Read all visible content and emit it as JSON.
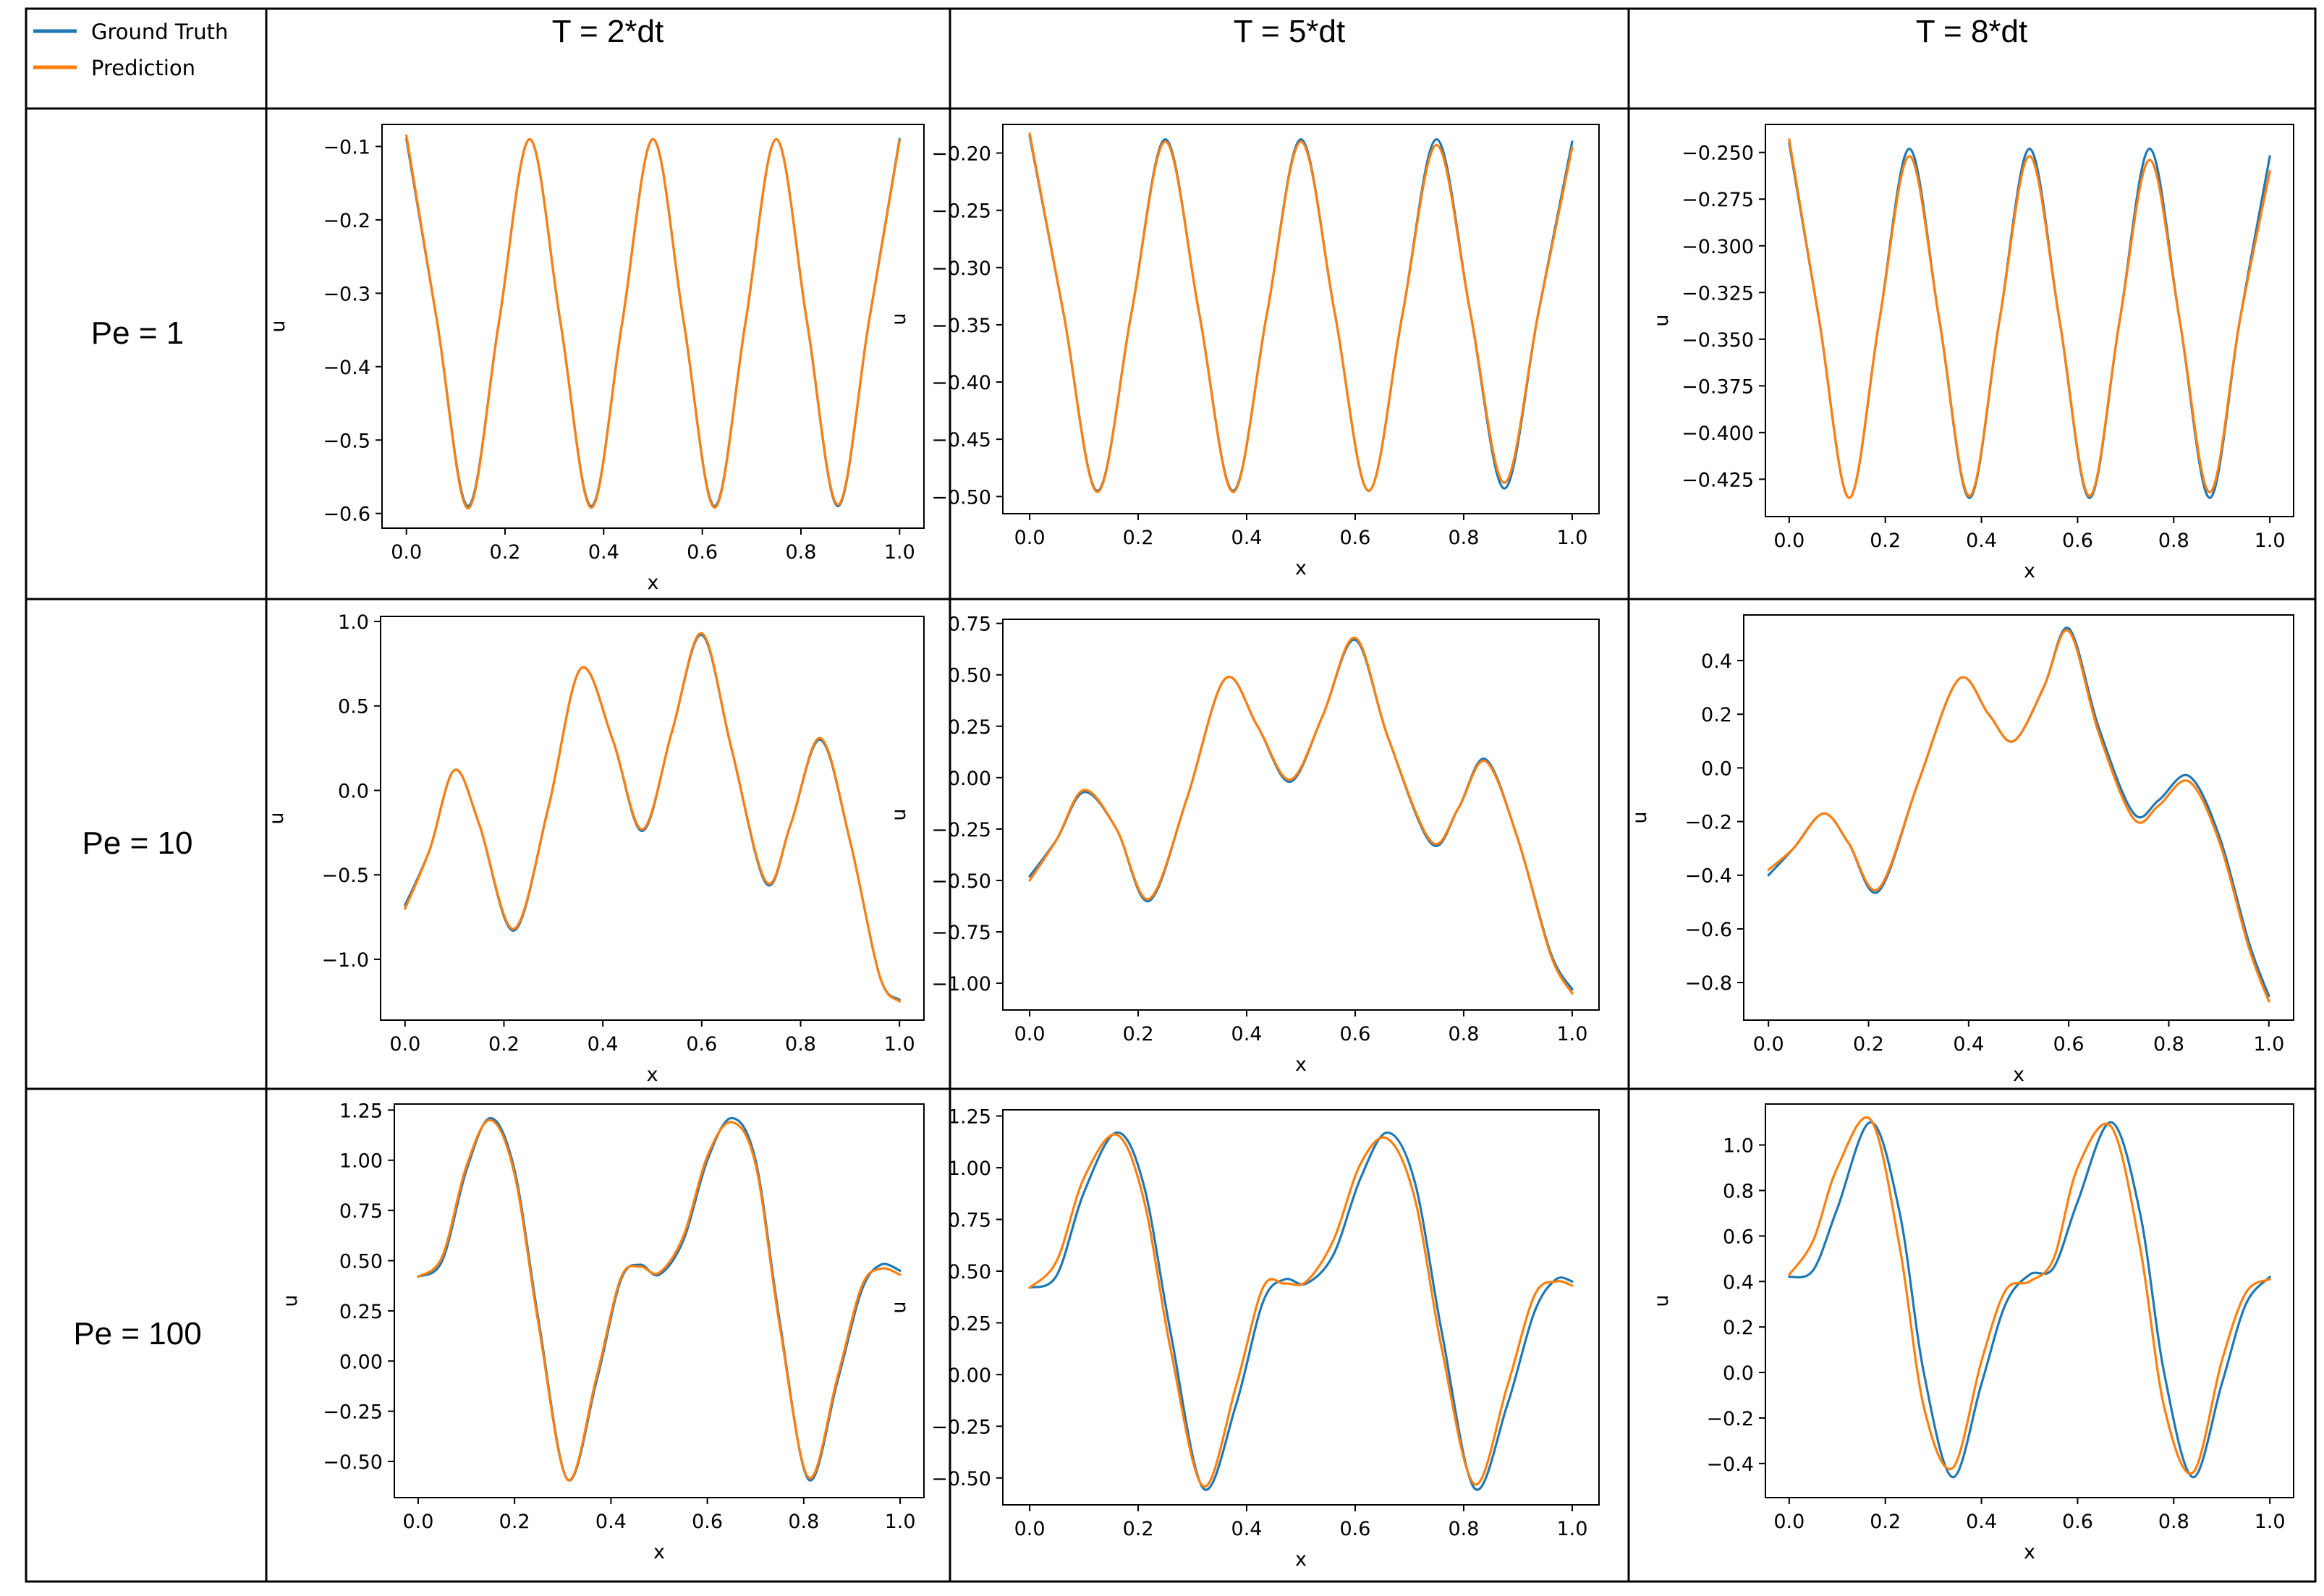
{
  "legend": [
    {
      "label": "Ground Truth",
      "color": "#1f77b4"
    },
    {
      "label": "Prediction",
      "color": "#ff7f0e"
    }
  ],
  "col_headers": [
    "T = 2*dt",
    "T = 5*dt",
    "T = 8*dt"
  ],
  "row_headers": [
    "Pe = 1",
    "Pe = 10",
    "Pe = 100"
  ],
  "chart_data": [
    {
      "type": "line",
      "row": 0,
      "col": 0,
      "xlabel": "x",
      "ylabel": "u",
      "xlim": [
        0,
        1
      ],
      "ylim": [
        -0.62,
        -0.07
      ],
      "xticks": [
        0,
        0.2,
        0.4,
        0.6,
        0.8,
        1.0
      ],
      "xtick_labels": [
        "0.0",
        "0.2",
        "0.4",
        "0.6",
        "0.8",
        "1.0"
      ],
      "yticks": [
        -0.1,
        -0.2,
        -0.3,
        -0.4,
        -0.5,
        -0.6
      ],
      "ytick_labels": [
        "−0.1",
        "−0.2",
        "−0.3",
        "−0.4",
        "−0.5",
        "−0.6"
      ],
      "x": [
        0,
        0.0625,
        0.125,
        0.1875,
        0.25,
        0.3125,
        0.375,
        0.4375,
        0.5,
        0.5625,
        0.625,
        0.6875,
        0.75,
        0.8125,
        0.875,
        0.9375,
        1.0
      ],
      "series": [
        {
          "name": "Ground Truth",
          "values": [
            -0.09,
            -0.34,
            -0.59,
            -0.34,
            -0.09,
            -0.34,
            -0.59,
            -0.34,
            -0.09,
            -0.34,
            -0.59,
            -0.34,
            -0.09,
            -0.34,
            -0.59,
            -0.34,
            -0.09
          ]
        },
        {
          "name": "Prediction",
          "values": [
            -0.085,
            -0.34,
            -0.593,
            -0.34,
            -0.09,
            -0.34,
            -0.592,
            -0.34,
            -0.09,
            -0.34,
            -0.592,
            -0.34,
            -0.09,
            -0.34,
            -0.588,
            -0.34,
            -0.092
          ]
        }
      ]
    },
    {
      "type": "line",
      "row": 0,
      "col": 1,
      "xlabel": "x",
      "ylabel": "u",
      "xlim": [
        0,
        1
      ],
      "ylim": [
        -0.515,
        -0.175
      ],
      "xticks": [
        0,
        0.2,
        0.4,
        0.6,
        0.8,
        1.0
      ],
      "xtick_labels": [
        "0.0",
        "0.2",
        "0.4",
        "0.6",
        "0.8",
        "1.0"
      ],
      "yticks": [
        -0.2,
        -0.25,
        -0.3,
        -0.35,
        -0.4,
        -0.45,
        -0.5
      ],
      "ytick_labels": [
        "−0.20",
        "−0.25",
        "−0.30",
        "−0.35",
        "−0.40",
        "−0.45",
        "−0.50"
      ],
      "x": [
        0,
        0.0625,
        0.125,
        0.1875,
        0.25,
        0.3125,
        0.375,
        0.4375,
        0.5,
        0.5625,
        0.625,
        0.6875,
        0.75,
        0.8125,
        0.875,
        0.9375,
        1.0
      ],
      "series": [
        {
          "name": "Ground Truth",
          "values": [
            -0.185,
            -0.34,
            -0.495,
            -0.34,
            -0.188,
            -0.34,
            -0.495,
            -0.34,
            -0.188,
            -0.34,
            -0.495,
            -0.34,
            -0.188,
            -0.34,
            -0.493,
            -0.34,
            -0.19
          ]
        },
        {
          "name": "Prediction",
          "values": [
            -0.183,
            -0.34,
            -0.496,
            -0.34,
            -0.19,
            -0.34,
            -0.496,
            -0.34,
            -0.19,
            -0.34,
            -0.495,
            -0.34,
            -0.193,
            -0.34,
            -0.488,
            -0.34,
            -0.195
          ]
        }
      ]
    },
    {
      "type": "line",
      "row": 0,
      "col": 2,
      "xlabel": "x",
      "ylabel": "u",
      "xlim": [
        0,
        1
      ],
      "ylim": [
        -0.445,
        -0.235
      ],
      "xticks": [
        0,
        0.2,
        0.4,
        0.6,
        0.8,
        1.0
      ],
      "xtick_labels": [
        "0.0",
        "0.2",
        "0.4",
        "0.6",
        "0.8",
        "1.0"
      ],
      "yticks": [
        -0.25,
        -0.275,
        -0.3,
        -0.325,
        -0.35,
        -0.375,
        -0.4,
        -0.425
      ],
      "ytick_labels": [
        "−0.250",
        "−0.275",
        "−0.300",
        "−0.325",
        "−0.350",
        "−0.375",
        "−0.400",
        "−0.425"
      ],
      "x": [
        0,
        0.0625,
        0.125,
        0.1875,
        0.25,
        0.3125,
        0.375,
        0.4375,
        0.5,
        0.5625,
        0.625,
        0.6875,
        0.75,
        0.8125,
        0.875,
        0.9375,
        1.0
      ],
      "series": [
        {
          "name": "Ground Truth",
          "values": [
            -0.245,
            -0.34,
            -0.435,
            -0.34,
            -0.248,
            -0.34,
            -0.435,
            -0.34,
            -0.248,
            -0.34,
            -0.435,
            -0.34,
            -0.248,
            -0.34,
            -0.435,
            -0.34,
            -0.252
          ]
        },
        {
          "name": "Prediction",
          "values": [
            -0.243,
            -0.34,
            -0.435,
            -0.34,
            -0.252,
            -0.34,
            -0.434,
            -0.34,
            -0.252,
            -0.34,
            -0.434,
            -0.34,
            -0.254,
            -0.34,
            -0.432,
            -0.34,
            -0.26
          ]
        }
      ]
    },
    {
      "type": "line",
      "row": 1,
      "col": 0,
      "xlabel": "x",
      "ylabel": "u",
      "xlim": [
        0,
        1
      ],
      "ylim": [
        -1.36,
        1.03
      ],
      "xticks": [
        0,
        0.2,
        0.4,
        0.6,
        0.8,
        1.0
      ],
      "xtick_labels": [
        "0.0",
        "0.2",
        "0.4",
        "0.6",
        "0.8",
        "1.0"
      ],
      "yticks": [
        1.0,
        0.5,
        0.0,
        -0.5,
        -1.0
      ],
      "ytick_labels": [
        "1.0",
        "0.5",
        "0.0",
        "−0.5",
        "−1.0"
      ],
      "x": [
        0,
        0.05,
        0.1,
        0.15,
        0.22,
        0.29,
        0.355,
        0.42,
        0.48,
        0.54,
        0.6,
        0.66,
        0.73,
        0.78,
        0.84,
        0.9,
        0.96,
        1.0
      ],
      "series": [
        {
          "name": "Ground Truth",
          "values": [
            -0.68,
            -0.35,
            0.12,
            -0.2,
            -0.83,
            -0.1,
            0.72,
            0.3,
            -0.24,
            0.35,
            0.92,
            0.25,
            -0.55,
            -0.2,
            0.3,
            -0.3,
            -1.1,
            -1.24
          ]
        },
        {
          "name": "Prediction",
          "values": [
            -0.7,
            -0.35,
            0.12,
            -0.2,
            -0.82,
            -0.1,
            0.72,
            0.3,
            -0.23,
            0.35,
            0.93,
            0.25,
            -0.54,
            -0.2,
            0.31,
            -0.3,
            -1.1,
            -1.25
          ]
        }
      ]
    },
    {
      "type": "line",
      "row": 1,
      "col": 1,
      "xlabel": "x",
      "ylabel": "u",
      "xlim": [
        0,
        1
      ],
      "ylim": [
        -1.13,
        0.77
      ],
      "xticks": [
        0,
        0.2,
        0.4,
        0.6,
        0.8,
        1.0
      ],
      "xtick_labels": [
        "0.0",
        "0.2",
        "0.4",
        "0.6",
        "0.8",
        "1.0"
      ],
      "yticks": [
        0.75,
        0.5,
        0.25,
        0.0,
        -0.25,
        -0.5,
        -0.75,
        -1.0
      ],
      "ytick_labels": [
        "0.75",
        "0.50",
        "0.25",
        "0.00",
        "−0.25",
        "−0.50",
        "−0.75",
        "−1.00"
      ],
      "x": [
        0,
        0.05,
        0.1,
        0.16,
        0.22,
        0.29,
        0.36,
        0.42,
        0.48,
        0.54,
        0.6,
        0.66,
        0.74,
        0.79,
        0.84,
        0.9,
        0.96,
        1.0
      ],
      "series": [
        {
          "name": "Ground Truth",
          "values": [
            -0.48,
            -0.3,
            -0.07,
            -0.25,
            -0.6,
            -0.1,
            0.48,
            0.25,
            -0.02,
            0.3,
            0.67,
            0.2,
            -0.32,
            -0.15,
            0.09,
            -0.3,
            -0.85,
            -1.03
          ]
        },
        {
          "name": "Prediction",
          "values": [
            -0.5,
            -0.3,
            -0.06,
            -0.25,
            -0.59,
            -0.1,
            0.48,
            0.25,
            -0.01,
            0.3,
            0.68,
            0.2,
            -0.31,
            -0.15,
            0.08,
            -0.3,
            -0.86,
            -1.05
          ]
        }
      ]
    },
    {
      "type": "line",
      "row": 1,
      "col": 2,
      "xlabel": "x",
      "ylabel": "u",
      "xlim": [
        0,
        1
      ],
      "ylim": [
        -0.94,
        0.57
      ],
      "xticks": [
        0,
        0.2,
        0.4,
        0.6,
        0.8,
        1.0
      ],
      "xtick_labels": [
        "0.0",
        "0.2",
        "0.4",
        "0.6",
        "0.8",
        "1.0"
      ],
      "yticks": [
        0.4,
        0.2,
        0.0,
        -0.2,
        -0.4,
        -0.6,
        -0.8
      ],
      "ytick_labels": [
        "0.4",
        "0.2",
        "0.0",
        "−0.2",
        "−0.4",
        "−0.6",
        "−0.8"
      ],
      "x": [
        0,
        0.05,
        0.11,
        0.16,
        0.22,
        0.3,
        0.38,
        0.44,
        0.49,
        0.55,
        0.6,
        0.66,
        0.73,
        0.78,
        0.84,
        0.9,
        0.96,
        1.0
      ],
      "series": [
        {
          "name": "Ground Truth",
          "values": [
            -0.4,
            -0.3,
            -0.17,
            -0.28,
            -0.46,
            -0.05,
            0.33,
            0.2,
            0.1,
            0.3,
            0.52,
            0.15,
            -0.17,
            -0.12,
            -0.03,
            -0.25,
            -0.65,
            -0.85
          ]
        },
        {
          "name": "Prediction",
          "values": [
            -0.38,
            -0.3,
            -0.17,
            -0.28,
            -0.45,
            -0.05,
            0.33,
            0.2,
            0.1,
            0.3,
            0.51,
            0.13,
            -0.19,
            -0.14,
            -0.05,
            -0.27,
            -0.67,
            -0.87
          ]
        }
      ]
    },
    {
      "type": "line",
      "row": 2,
      "col": 0,
      "xlabel": "x",
      "ylabel": "u",
      "xlim": [
        0,
        1
      ],
      "ylim": [
        -0.68,
        1.28
      ],
      "xticks": [
        0,
        0.2,
        0.4,
        0.6,
        0.8,
        1.0
      ],
      "xtick_labels": [
        "0.0",
        "0.2",
        "0.4",
        "0.6",
        "0.8",
        "1.0"
      ],
      "yticks": [
        1.25,
        1.0,
        0.75,
        0.5,
        0.25,
        0.0,
        -0.25,
        -0.5
      ],
      "ytick_labels": [
        "1.25",
        "1.00",
        "0.75",
        "0.50",
        "0.25",
        "0.00",
        "−0.25",
        "−0.50"
      ],
      "x": [
        0,
        0.05,
        0.1,
        0.15,
        0.2,
        0.25,
        0.31,
        0.37,
        0.42,
        0.46,
        0.5,
        0.55,
        0.6,
        0.65,
        0.7,
        0.75,
        0.81,
        0.87,
        0.92,
        0.96,
        1.0
      ],
      "series": [
        {
          "name": "Ground Truth",
          "values": [
            0.42,
            0.5,
            0.95,
            1.21,
            0.95,
            0.2,
            -0.59,
            -0.1,
            0.4,
            0.48,
            0.43,
            0.6,
            1.0,
            1.21,
            1.0,
            0.2,
            -0.59,
            -0.1,
            0.35,
            0.48,
            0.45
          ]
        },
        {
          "name": "Prediction",
          "values": [
            0.42,
            0.52,
            0.97,
            1.2,
            0.93,
            0.18,
            -0.59,
            -0.08,
            0.41,
            0.47,
            0.44,
            0.62,
            1.02,
            1.19,
            0.98,
            0.18,
            -0.58,
            -0.08,
            0.37,
            0.46,
            0.43
          ]
        }
      ]
    },
    {
      "type": "line",
      "row": 2,
      "col": 1,
      "xlabel": "x",
      "ylabel": "u",
      "xlim": [
        0,
        1
      ],
      "ylim": [
        -0.63,
        1.28
      ],
      "xticks": [
        0,
        0.2,
        0.4,
        0.6,
        0.8,
        1.0
      ],
      "xtick_labels": [
        "0.0",
        "0.2",
        "0.4",
        "0.6",
        "0.8",
        "1.0"
      ],
      "yticks": [
        1.25,
        1.0,
        0.75,
        0.5,
        0.25,
        0.0,
        -0.25,
        -0.5
      ],
      "ytick_labels": [
        "1.25",
        "1.00",
        "0.75",
        "0.50",
        "0.25",
        "0.00",
        "−0.25",
        "−0.50"
      ],
      "x": [
        0,
        0.05,
        0.1,
        0.16,
        0.21,
        0.26,
        0.32,
        0.38,
        0.43,
        0.47,
        0.51,
        0.56,
        0.61,
        0.66,
        0.71,
        0.76,
        0.82,
        0.88,
        0.93,
        0.97,
        1.0
      ],
      "series": [
        {
          "name": "Ground Truth",
          "values": [
            0.42,
            0.48,
            0.88,
            1.17,
            0.92,
            0.2,
            -0.55,
            -0.15,
            0.35,
            0.46,
            0.44,
            0.58,
            0.95,
            1.17,
            0.93,
            0.2,
            -0.55,
            -0.15,
            0.3,
            0.46,
            0.45
          ]
        },
        {
          "name": "Prediction",
          "values": [
            0.42,
            0.55,
            0.95,
            1.16,
            0.85,
            0.12,
            -0.54,
            -0.06,
            0.42,
            0.44,
            0.45,
            0.65,
            1.02,
            1.14,
            0.85,
            0.12,
            -0.53,
            -0.06,
            0.38,
            0.45,
            0.43
          ]
        }
      ]
    },
    {
      "type": "line",
      "row": 2,
      "col": 2,
      "xlabel": "x",
      "ylabel": "u",
      "xlim": [
        0,
        1
      ],
      "ylim": [
        -0.55,
        1.18
      ],
      "xticks": [
        0,
        0.2,
        0.4,
        0.6,
        0.8,
        1.0
      ],
      "xtick_labels": [
        "0.0",
        "0.2",
        "0.4",
        "0.6",
        "0.8",
        "1.0"
      ],
      "yticks": [
        1.0,
        0.8,
        0.6,
        0.4,
        0.2,
        0.0,
        -0.2,
        -0.4
      ],
      "ytick_labels": [
        "1.0",
        "0.8",
        "0.6",
        "0.4",
        "0.2",
        "0.0",
        "−0.2",
        "−0.4"
      ],
      "x": [
        0,
        0.05,
        0.1,
        0.17,
        0.23,
        0.28,
        0.34,
        0.4,
        0.45,
        0.5,
        0.55,
        0.6,
        0.67,
        0.73,
        0.78,
        0.84,
        0.9,
        0.95,
        1.0
      ],
      "series": [
        {
          "name": "Ground Truth",
          "values": [
            0.42,
            0.45,
            0.72,
            1.1,
            0.7,
            0.0,
            -0.46,
            -0.05,
            0.3,
            0.43,
            0.46,
            0.75,
            1.1,
            0.7,
            0.0,
            -0.46,
            -0.05,
            0.3,
            0.42
          ]
        },
        {
          "name": "Prediction",
          "values": [
            0.43,
            0.58,
            0.9,
            1.11,
            0.55,
            -0.15,
            -0.42,
            0.05,
            0.36,
            0.4,
            0.5,
            0.9,
            1.08,
            0.55,
            -0.15,
            -0.44,
            0.05,
            0.35,
            0.41
          ]
        }
      ]
    }
  ]
}
